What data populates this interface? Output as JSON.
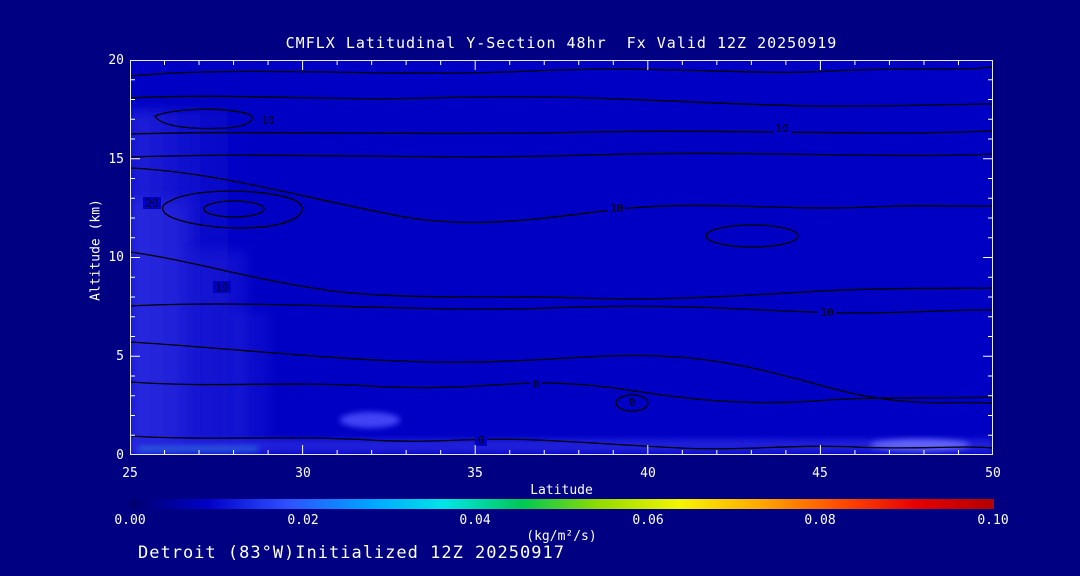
{
  "title": "CMFLX Latitudinal Y-Section 48hr  Fx Valid 12Z 20250919",
  "footer": "Detroit (83°W)Initialized 12Z 20250917",
  "axes": {
    "x": {
      "label": "Latitude",
      "ticks": [
        "25",
        "30",
        "35",
        "40",
        "45",
        "50"
      ]
    },
    "y": {
      "label": "Altitude (km)",
      "ticks": [
        "20",
        "15",
        "10",
        "5",
        "0"
      ]
    }
  },
  "colorbar": {
    "ticks": [
      "0.00",
      "0.02",
      "0.04",
      "0.06",
      "0.08",
      "0.10"
    ],
    "units": "(kg/m²/s)"
  },
  "plot": {
    "contour_labels": [
      {
        "text": "10"
      },
      {
        "text": "10"
      },
      {
        "text": "10"
      },
      {
        "text": "10"
      },
      {
        "text": "10"
      },
      {
        "text": "20"
      },
      {
        "text": "0"
      },
      {
        "text": "0"
      },
      {
        "text": "0"
      }
    ]
  },
  "colors": {
    "background": "#000082",
    "plot_background": "#0000C4",
    "contour_line": "#000000",
    "text": "#FFFFFF",
    "colorbar_palette": [
      "#00006E",
      "#0000C8",
      "#2E50FF",
      "#00A0FF",
      "#00E6E6",
      "#00C850",
      "#96DC00",
      "#F5F500",
      "#FFAA00",
      "#FF5000",
      "#E60000",
      "#B40000"
    ]
  },
  "chart_data": {
    "type": "heatmap",
    "subtype": "filled-contour latitude-height cross-section",
    "title": "CMFLX Latitudinal Y-Section 48hr  Fx Valid 12Z 20250919",
    "xlabel": "Latitude",
    "ylabel": "Altitude (km)",
    "xlim": [
      25,
      50
    ],
    "ylim": [
      0,
      20
    ],
    "x_ticks": [
      25,
      30,
      35,
      40,
      45,
      50
    ],
    "y_ticks": [
      0,
      5,
      10,
      15,
      20
    ],
    "grid": false,
    "colorbar": {
      "label": "(kg/m²/s)",
      "min": 0.0,
      "max": 0.1,
      "ticks": [
        0.0,
        0.02,
        0.04,
        0.06,
        0.08,
        0.1
      ],
      "orientation": "horizontal",
      "position": "bottom"
    },
    "contour_levels_labeled": [
      0,
      10,
      20
    ],
    "contour_labels": [
      {
        "value": 10,
        "lat": 29.1,
        "altitude_km": 17.0
      },
      {
        "value": 10,
        "lat": 43.9,
        "altitude_km": 16.6
      },
      {
        "value": 10,
        "lat": 39.1,
        "altitude_km": 12.5
      },
      {
        "value": 10,
        "lat": 27.7,
        "altitude_km": 8.5
      },
      {
        "value": 10,
        "lat": 45.2,
        "altitude_km": 7.2
      },
      {
        "value": 20,
        "lat": 25.6,
        "altitude_km": 12.8
      },
      {
        "value": 0,
        "lat": 36.8,
        "altitude_km": 3.5
      },
      {
        "value": 0,
        "lat": 39.5,
        "altitude_km": 2.8
      },
      {
        "value": 0,
        "lat": 35.2,
        "altitude_km": 0.7
      }
    ],
    "shaded_field_summary": "Shaded values mostly 0.00-0.02 kg/m2/s (dark to medium blue). Lighter-blue maxima near lat 25-29 from surface to ~14 km, a shallow bright band below ~0.5 km at all latitudes, and small maxima near lat 32 at ~1.5 km and lat 47-49 near the surface.",
    "forecast_info": {
      "lead_hours": 48,
      "valid": "12Z 20250919",
      "initialized": "12Z 20250917",
      "location": "Detroit (83°W)"
    }
  }
}
